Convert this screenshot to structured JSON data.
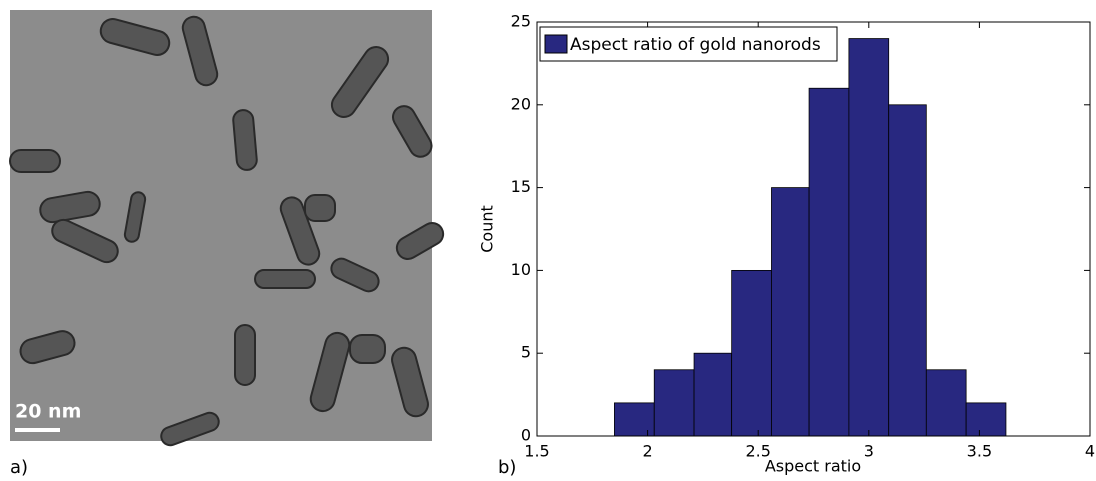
{
  "image_panel": {
    "label": "a)",
    "scale_bar": "20 nm"
  },
  "chart_data": {
    "type": "histogram",
    "label": "b)",
    "xlabel": "Aspect ratio",
    "ylabel": "Count",
    "bins": [
      1.85,
      2.03,
      2.21,
      2.38,
      2.56,
      2.73,
      2.91,
      3.09,
      3.26,
      3.44,
      3.62
    ],
    "series": [
      {
        "name": "Aspect ratio of gold nanorods",
        "color": "#282880",
        "values": [
          2,
          4,
          5,
          10,
          15,
          21,
          24,
          20,
          4,
          2
        ]
      }
    ],
    "xlim": [
      1.5,
      4
    ],
    "xticks": [
      1.5,
      2,
      2.5,
      3,
      3.5,
      4
    ],
    "ylim": [
      0,
      25
    ],
    "yticks": [
      0,
      5,
      10,
      15,
      20,
      25
    ],
    "grid": false,
    "legend": "upper left"
  }
}
